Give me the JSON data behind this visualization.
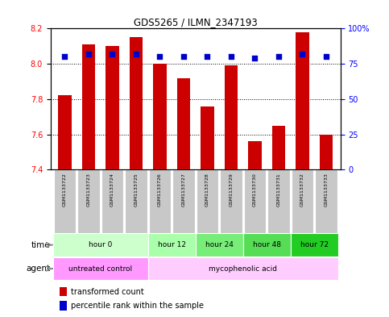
{
  "title": "GDS5265 / ILMN_2347193",
  "samples": [
    "GSM1133722",
    "GSM1133723",
    "GSM1133724",
    "GSM1133725",
    "GSM1133726",
    "GSM1133727",
    "GSM1133728",
    "GSM1133729",
    "GSM1133730",
    "GSM1133731",
    "GSM1133732",
    "GSM1133733"
  ],
  "bar_values": [
    7.82,
    8.11,
    8.1,
    8.15,
    8.0,
    7.92,
    7.76,
    7.99,
    7.56,
    7.65,
    8.18,
    7.6
  ],
  "percentile_values": [
    80,
    82,
    82,
    82,
    80,
    80,
    80,
    80,
    79,
    80,
    82,
    80
  ],
  "bar_color": "#cc0000",
  "percentile_color": "#0000cc",
  "ylim_left": [
    7.4,
    8.2
  ],
  "ylim_right": [
    0,
    100
  ],
  "yticks_left": [
    7.4,
    7.6,
    7.8,
    8.0,
    8.2
  ],
  "yticks_right": [
    0,
    25,
    50,
    75,
    100
  ],
  "ytick_labels_right": [
    "0",
    "25",
    "50",
    "75",
    "100%"
  ],
  "hlines": [
    7.6,
    7.8,
    8.0
  ],
  "time_groups": [
    {
      "label": "hour 0",
      "start": 0,
      "end": 3,
      "color": "#ccffcc"
    },
    {
      "label": "hour 12",
      "start": 4,
      "end": 5,
      "color": "#aaffaa"
    },
    {
      "label": "hour 24",
      "start": 6,
      "end": 7,
      "color": "#77ee77"
    },
    {
      "label": "hour 48",
      "start": 8,
      "end": 9,
      "color": "#55dd55"
    },
    {
      "label": "hour 72",
      "start": 10,
      "end": 11,
      "color": "#22cc22"
    }
  ],
  "agent_groups": [
    {
      "label": "untreated control",
      "start": 0,
      "end": 3,
      "color": "#ff99ff"
    },
    {
      "label": "mycophenolic acid",
      "start": 4,
      "end": 11,
      "color": "#ffccff"
    }
  ],
  "legend_bar_label": "transformed count",
  "legend_pct_label": "percentile rank within the sample",
  "time_label": "time",
  "agent_label": "agent",
  "sample_box_color": "#c8c8c8",
  "bar_width": 0.55
}
